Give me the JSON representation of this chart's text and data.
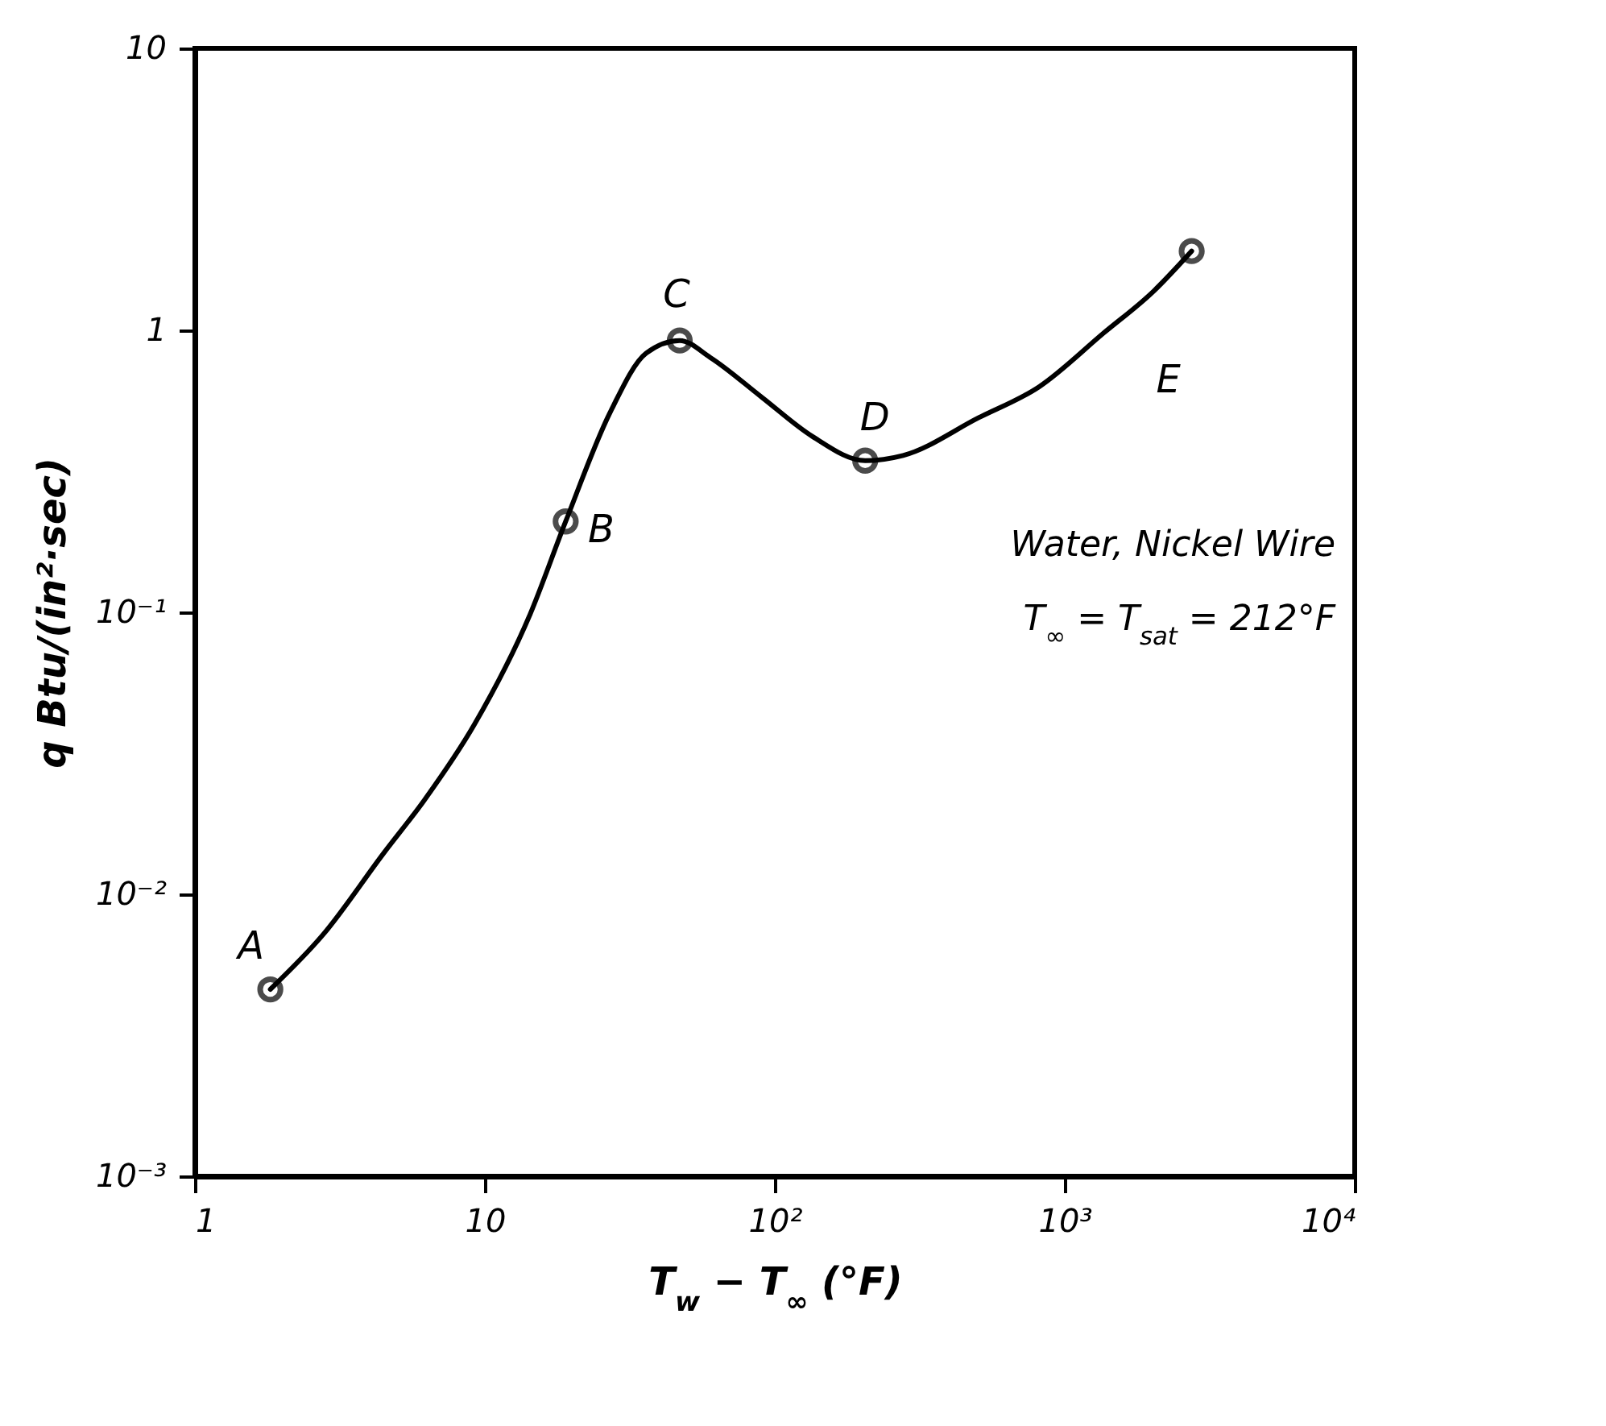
{
  "chart_data": {
    "type": "line",
    "xlabel": "T$_{w}$ − T$_{∞}$  (°F)",
    "ylabel": "q   Btu/(in²·sec)",
    "annotations": [
      {
        "text": "A",
        "x": 1.82,
        "y": 0.0046
      },
      {
        "text": "B",
        "x": 19,
        "y": 0.21
      },
      {
        "text": "C",
        "x": 47,
        "y": 0.92
      },
      {
        "text": "D",
        "x": 205,
        "y": 0.345
      },
      {
        "text": "E",
        "x": 1365,
        "y": 0.98
      },
      "Water, Nickel Wire",
      "T$_{∞}$ = T$_{sat}$ = 212°F"
    ],
    "series": [
      {
        "color": "#000000",
        "marker": "none",
        "line_style": "solid",
        "x": [
          1.82,
          2.77,
          4.48,
          6.19,
          9.2,
          14.3,
          19,
          27,
          36,
          47,
          60,
          90,
          135,
          205,
          277,
          505,
          815,
          1365,
          2030,
          2740
        ],
        "values": [
          0.0046,
          0.0072,
          0.014,
          0.0216,
          0.04,
          0.098,
          0.21,
          0.51,
          0.83,
          0.92,
          0.8,
          0.58,
          0.42,
          0.345,
          0.36,
          0.49,
          0.63,
          0.98,
          1.38,
          1.91
        ]
      },
      {
        "type": "scatter",
        "color": "#000000",
        "marker": "circle",
        "x": [
          1.82,
          19,
          47,
          205,
          2740
        ],
        "values": [
          0.0046,
          0.21,
          0.92,
          0.345,
          1.91
        ]
      }
    ],
    "log": "xy",
    "xlim": [
      1,
      10000
    ],
    "xticks": [
      1,
      10,
      {
        "value": 100,
        "label": "10²"
      },
      {
        "value": 1000,
        "label": "10³"
      },
      {
        "value": 10000,
        "label": "10⁴"
      }
    ],
    "ylim": [
      0.001,
      10
    ],
    "yticks": [
      {
        "value": 0.001,
        "label": "10⁻³"
      },
      {
        "value": 0.01,
        "label": "10⁻²"
      },
      {
        "value": 0.1,
        "label": "10⁻¹"
      },
      1,
      10
    ],
    "grid": false
  }
}
